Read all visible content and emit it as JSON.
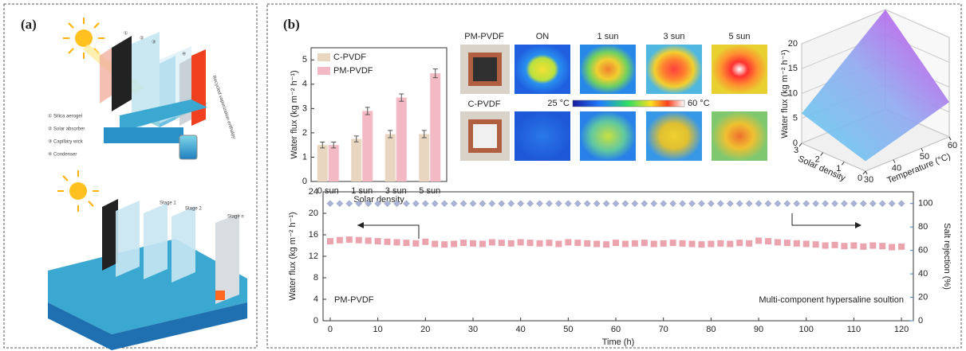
{
  "panel_a": {
    "label": "(a)",
    "markers": [
      "①",
      "②",
      "③",
      "④"
    ],
    "legend": [
      "① Silica aerogel",
      "② Solar absorber",
      "③ Capillary wick",
      "④ Condenser"
    ],
    "recycled": "Recycled vaporization enthalpy",
    "stages": [
      "Stage 1",
      "Stage 2",
      "Stage n"
    ]
  },
  "panel_b": {
    "label": "(b)",
    "thermal": {
      "samples": [
        "PM-PVDF",
        "C-PVDF"
      ],
      "conditions": [
        "ON",
        "1 sun",
        "3 sun",
        "5 sun"
      ],
      "colorbar": [
        "25 °C",
        "60 °C"
      ]
    }
  },
  "chart_data": [
    {
      "type": "bar",
      "categories": [
        "0 sun",
        "1 sun",
        "3 sun",
        "5 sun"
      ],
      "series": [
        {
          "name": "C-PVDF",
          "color": "#e9d6c0",
          "values": [
            1.5,
            1.75,
            1.95,
            1.95
          ],
          "errors": [
            0.12,
            0.12,
            0.15,
            0.15
          ]
        },
        {
          "name": "PM-PVDF",
          "color": "#f3b9c4",
          "values": [
            1.5,
            2.9,
            3.45,
            4.45
          ],
          "errors": [
            0.12,
            0.15,
            0.15,
            0.18
          ]
        }
      ],
      "ylim": [
        0,
        5.5
      ],
      "yticks": [
        0,
        1,
        2,
        3,
        4,
        5
      ],
      "ylabel": "Water flux (kg m⁻² h⁻¹)",
      "xlabel": "Solar density",
      "legend": "upper-left"
    },
    {
      "type": "surface",
      "zlabel": "Water flux (kg m⁻² h⁻¹)",
      "zlim": [
        0,
        20
      ],
      "zticks": [
        0,
        5,
        10,
        15,
        20
      ],
      "xlabel": "Temperature (°C)",
      "xlim": [
        30,
        60
      ],
      "xticks": [
        30,
        40,
        50,
        60
      ],
      "ylabel": "Solar density",
      "ylim": [
        0,
        3
      ],
      "yticks": [
        0,
        1,
        2,
        3
      ]
    },
    {
      "type": "line",
      "x": [
        0,
        2,
        4,
        6,
        8,
        10,
        12,
        14,
        16,
        18,
        20,
        22,
        24,
        26,
        28,
        30,
        32,
        34,
        36,
        38,
        40,
        42,
        44,
        46,
        48,
        50,
        52,
        54,
        56,
        58,
        60,
        62,
        64,
        66,
        68,
        70,
        72,
        74,
        76,
        78,
        80,
        82,
        84,
        86,
        88,
        90,
        92,
        94,
        96,
        98,
        100,
        102,
        104,
        106,
        108,
        110,
        112,
        114,
        116,
        118,
        120
      ],
      "series": [
        {
          "color": "#eba3ad",
          "marker": "square",
          "values": [
            14.8,
            15.0,
            15.1,
            15.0,
            14.9,
            14.8,
            14.7,
            14.6,
            14.5,
            14.4,
            14.7,
            14.3,
            14.2,
            14.3,
            14.5,
            14.4,
            14.3,
            14.6,
            14.5,
            14.4,
            14.6,
            14.5,
            14.4,
            14.5,
            14.3,
            14.6,
            14.5,
            14.4,
            14.3,
            14.2,
            14.5,
            14.3,
            14.4,
            14.5,
            14.3,
            14.4,
            14.5,
            14.4,
            14.3,
            14.2,
            14.3,
            14.4,
            14.3,
            14.5,
            14.4,
            14.9,
            14.8,
            14.6,
            14.5,
            14.4,
            14.3,
            14.2,
            14.0,
            14.1,
            13.9,
            14.0,
            13.8,
            14.0,
            13.9,
            13.7,
            13.8
          ]
        },
        {
          "color": "#aab3d6",
          "marker": "diamond",
          "axis": "y2",
          "values": [
            100,
            100,
            100,
            100,
            100,
            100,
            100,
            100,
            100,
            100,
            100,
            100,
            100,
            100,
            100,
            100,
            100,
            100,
            100,
            100,
            100,
            100,
            100,
            100,
            100,
            100,
            100,
            100,
            100,
            100,
            100,
            100,
            100,
            100,
            100,
            100,
            100,
            100,
            100,
            100,
            100,
            100,
            100,
            100,
            100,
            100,
            100,
            100,
            100,
            100,
            100,
            100,
            100,
            100,
            100,
            100,
            100,
            100,
            100,
            100,
            100
          ]
        }
      ],
      "xlim": [
        -1.5,
        122.5
      ],
      "xticks": [
        0,
        10,
        20,
        30,
        40,
        50,
        60,
        70,
        80,
        90,
        100,
        110,
        120
      ],
      "ylim": [
        0,
        24
      ],
      "yticks": [
        0,
        4,
        8,
        12,
        16,
        20,
        24
      ],
      "y2lim": [
        0,
        110
      ],
      "y2ticks": [
        0,
        20,
        40,
        60,
        80,
        100
      ],
      "y2color": "#4a7fc1",
      "xlabel": "Time (h)",
      "ylabel": "Water flux (kg m⁻² h⁻¹)",
      "y2label": "Salt rejection (%)",
      "annotations": [
        "PM-PVDF",
        "Multi-component hypersaline soultion"
      ]
    }
  ]
}
